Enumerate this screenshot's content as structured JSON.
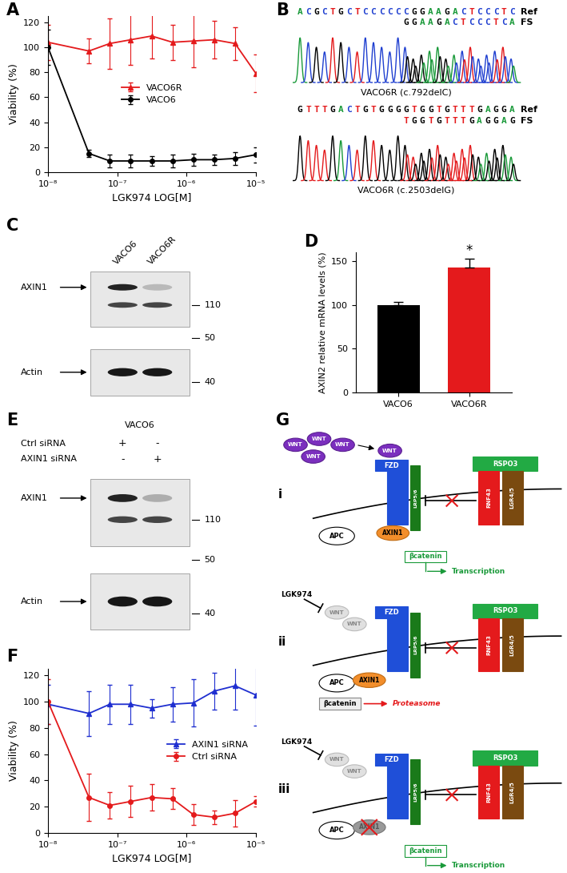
{
  "panel_labels": [
    "A",
    "B",
    "C",
    "D",
    "E",
    "F",
    "G"
  ],
  "chart_data": [
    {
      "type": "line",
      "log": "x",
      "x_label": "LGK974 LOG[M]",
      "y_label": "Viability (%)",
      "x": [
        1e-08,
        3.9e-08,
        7.8e-08,
        1.56e-07,
        3.13e-07,
        6.25e-07,
        1.25e-06,
        2.5e-06,
        5e-06,
        1e-05
      ],
      "xlim": [
        1e-08,
        1e-05
      ],
      "xticks": [
        {
          "value": 1e-08,
          "label": "10⁻⁸"
        },
        {
          "value": 1e-07,
          "label": "10⁻⁷"
        },
        {
          "value": 1e-06,
          "label": "10⁻⁶"
        },
        {
          "value": 1e-05,
          "label": "10⁻⁵"
        }
      ],
      "ylim": [
        0,
        125
      ],
      "yticks": [
        0,
        20,
        40,
        60,
        80,
        100,
        120
      ],
      "legend": "center",
      "series": [
        {
          "name": "VACO6R",
          "color": "#e41a1c",
          "marker": "triangle",
          "values": [
            104,
            97,
            103,
            106,
            109,
            104,
            105,
            106,
            103,
            79
          ],
          "errors": [
            14,
            10,
            20,
            20,
            18,
            14,
            21,
            15,
            13,
            15
          ]
        },
        {
          "name": "VACO6",
          "color": "#000000",
          "marker": "circle",
          "values": [
            100,
            15,
            9,
            9,
            9,
            9,
            10,
            10,
            11,
            14
          ],
          "errors": [
            14,
            3,
            5,
            5,
            4,
            5,
            5,
            4,
            5,
            6
          ]
        }
      ]
    },
    {
      "type": "bar",
      "y_label": "AXIN2 relative mRNA levels (%)",
      "categories": [
        "VACO6",
        "VACO6R"
      ],
      "values": [
        100,
        143
      ],
      "errors": [
        3,
        10
      ],
      "colors": [
        "#000000",
        "#e41a1c"
      ],
      "ylim": [
        0,
        160
      ],
      "yticks": [
        0,
        50,
        100,
        150
      ],
      "annotations": [
        {
          "text": "*",
          "category": "VACO6R"
        }
      ]
    },
    {
      "type": "line",
      "log": "x",
      "x_label": "LGK974 LOG[M]",
      "y_label": "Viability (%)",
      "x": [
        1e-08,
        3.9e-08,
        7.8e-08,
        1.56e-07,
        3.13e-07,
        6.25e-07,
        1.25e-06,
        2.5e-06,
        5e-06,
        1e-05
      ],
      "xlim": [
        1e-08,
        1e-05
      ],
      "xticks": [
        {
          "value": 1e-08,
          "label": "10⁻⁸"
        },
        {
          "value": 1e-07,
          "label": "10⁻⁷"
        },
        {
          "value": 1e-06,
          "label": "10⁻⁶"
        },
        {
          "value": 1e-05,
          "label": "10⁻⁵"
        }
      ],
      "ylim": [
        0,
        125
      ],
      "yticks": [
        0,
        20,
        40,
        60,
        80,
        100,
        120
      ],
      "legend": "center right",
      "series": [
        {
          "name": "AXIN1 siRNA",
          "color": "#1f2fd0",
          "marker": "triangle",
          "values": [
            98,
            91,
            98,
            98,
            95,
            98,
            99,
            108,
            112,
            105
          ],
          "errors": [
            15,
            17,
            15,
            15,
            7,
            13,
            18,
            14,
            18,
            23
          ]
        },
        {
          "name": "Ctrl siRNA",
          "color": "#e41a1c",
          "marker": "circle",
          "values": [
            100,
            27,
            21,
            24,
            27,
            26,
            14,
            12,
            15,
            24
          ],
          "errors": [
            17,
            18,
            10,
            12,
            10,
            8,
            8,
            5,
            10,
            4
          ]
        }
      ]
    }
  ],
  "sequences": [
    {
      "lead": "ACGCTGCTCCCCC",
      "ref": "CGGAAGACTCCCTC",
      "fs": "GGAAGACTCCCTCA",
      "caption": "VACO6R (c.792delC)"
    },
    {
      "lead": "GTTTGACTGTGGG",
      "ref": "GTGGTGTTTGAGGA",
      "fs": "TGGTGTTTGAGGAG",
      "caption": "VACO6R (c.2503delG)"
    }
  ],
  "sequence_row_labels": [
    "Ref",
    "FS"
  ],
  "base_colors": {
    "A": "#1a9a3a",
    "C": "#1f3fd0",
    "G": "#000000",
    "T": "#e41a1c"
  },
  "blots": [
    {
      "lanes": [
        "VACO6",
        "VACO6R"
      ],
      "bands": [
        "AXIN1",
        "Actin"
      ],
      "markers": [
        110,
        50,
        40
      ]
    },
    {
      "title": "VACO6",
      "conditions": [
        {
          "label": "Ctrl siRNA",
          "signs": [
            "+",
            "-"
          ]
        },
        {
          "label": "AXIN1 siRNA",
          "signs": [
            "-",
            "+"
          ]
        }
      ],
      "bands": [
        "AXIN1",
        "Actin"
      ],
      "markers": [
        110,
        50,
        40
      ]
    }
  ],
  "diagram": {
    "rows": [
      "i",
      "ii",
      "iii"
    ],
    "wnt": "WNT",
    "fzd": "FZD",
    "lrp": "LRP5/6",
    "rspo": "RSPO3",
    "rnf": "RNF43",
    "lgr": "LGR4/5",
    "axin": "AXIN1",
    "apc": "APC",
    "bcat": "βcatenin",
    "transcription": "Transcription",
    "drug": "LGK974",
    "proteasome": "Proteasome"
  }
}
